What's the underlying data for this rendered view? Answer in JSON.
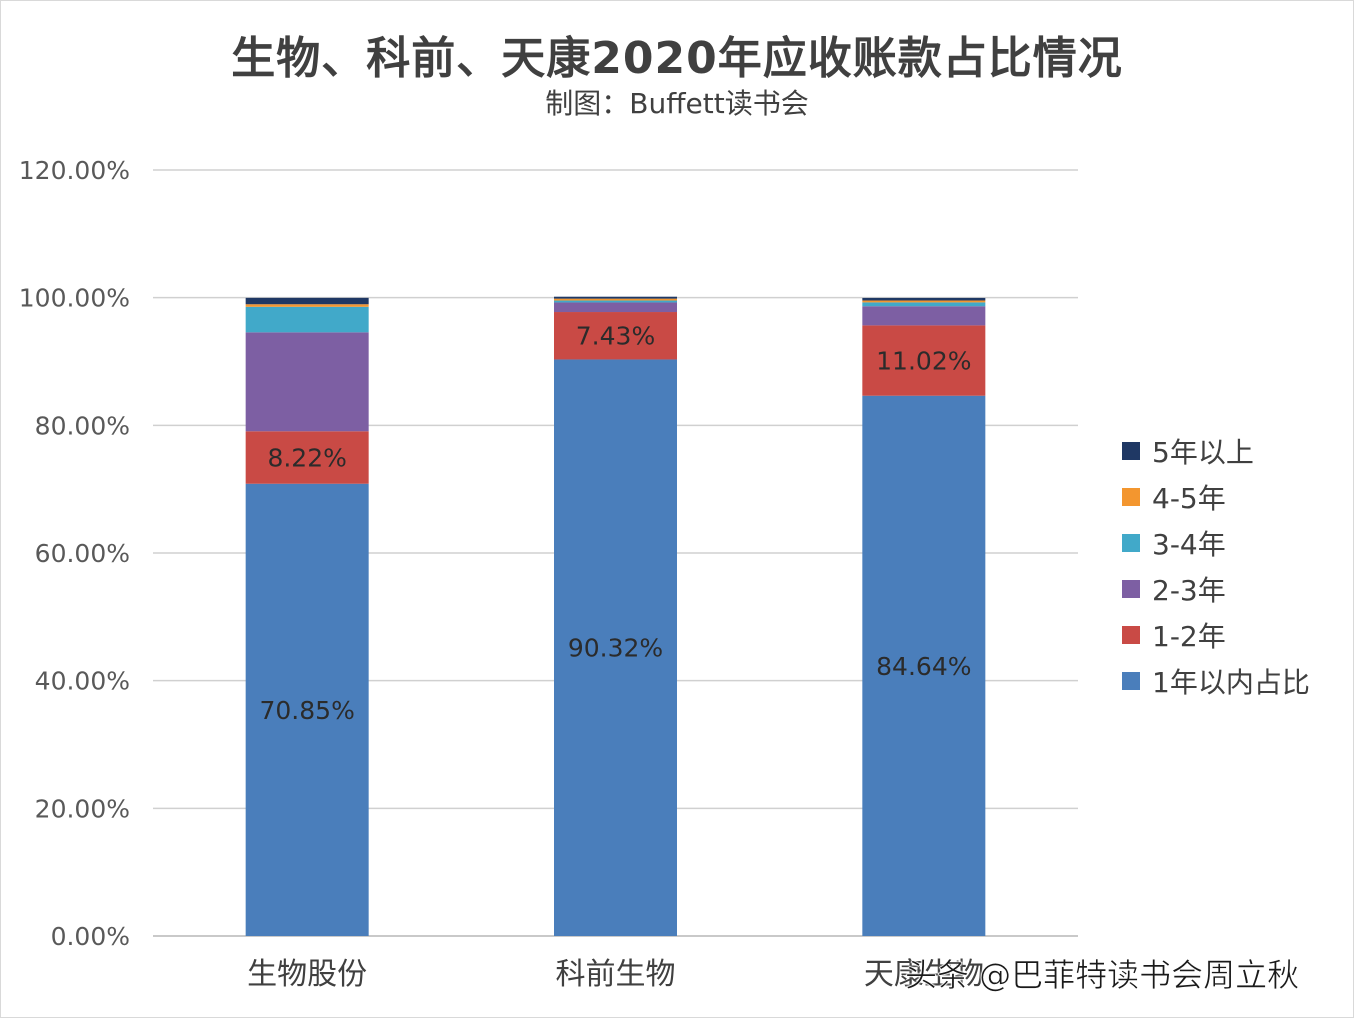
{
  "title": "生物、科前、天康2020年应收账款占比情况",
  "subtitle": "制图：Buffett读书会",
  "watermark": "头条 @巴菲特读书会周立秋",
  "chart_data": {
    "type": "bar",
    "stacked": true,
    "categories": [
      "生物股份",
      "科前生物",
      "天康生物"
    ],
    "ylim": [
      0,
      120
    ],
    "yticks": [
      "0.00%",
      "20.00%",
      "40.00%",
      "60.00%",
      "80.00%",
      "100.00%",
      "120.00%"
    ],
    "ytick_values": [
      0,
      20,
      40,
      60,
      80,
      100,
      120
    ],
    "grid": true,
    "legend_position": "right",
    "series": [
      {
        "name": "1年以内占比",
        "color": "#4a7ebb",
        "values": [
          70.85,
          90.32,
          84.64
        ],
        "labels": [
          "70.85%",
          "90.32%",
          "84.64%"
        ]
      },
      {
        "name": "1-2年",
        "color": "#c94a45",
        "values": [
          8.22,
          7.43,
          11.02
        ],
        "labels": [
          "8.22%",
          "7.43%",
          "11.02%"
        ]
      },
      {
        "name": "2-3年",
        "color": "#7d5fa3",
        "values": [
          15.5,
          1.5,
          3.0
        ],
        "labels": [
          "",
          "",
          ""
        ]
      },
      {
        "name": "3-4年",
        "color": "#41a9c9",
        "values": [
          4.0,
          0.3,
          0.6
        ],
        "labels": [
          "",
          "",
          ""
        ]
      },
      {
        "name": "4-5年",
        "color": "#f3962f",
        "values": [
          0.4,
          0.3,
          0.3
        ],
        "labels": [
          "",
          "",
          ""
        ]
      },
      {
        "name": "5年以上",
        "color": "#1f3864",
        "values": [
          1.0,
          0.3,
          0.4
        ],
        "labels": [
          "",
          "",
          ""
        ]
      }
    ],
    "legend_order": [
      5,
      4,
      3,
      2,
      1,
      0
    ]
  }
}
